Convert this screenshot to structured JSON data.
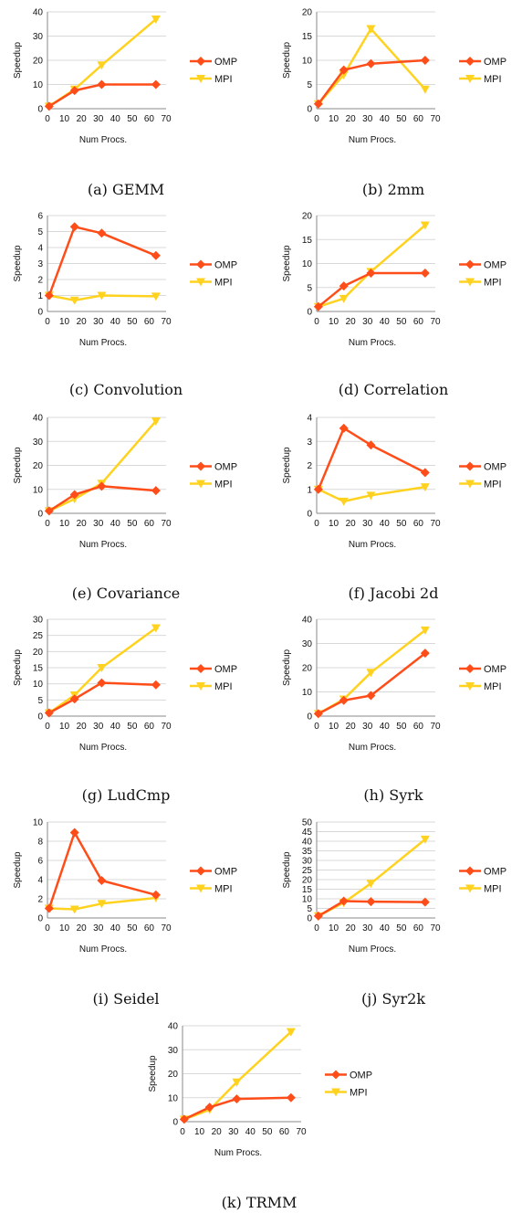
{
  "legend": {
    "omp": "OMP",
    "mpi": "MPI"
  },
  "colors": {
    "omp": "#ff4d1a",
    "mpi": "#ffd21f",
    "grid": "#d9d9d9",
    "axis": "#8a8a8a"
  },
  "chart_data": [
    {
      "type": "line",
      "caption": "(a) GEMM",
      "xlabel": "Num Procs.",
      "ylabel": "Speedup",
      "xlim": [
        0,
        70
      ],
      "ylim": [
        0,
        40
      ],
      "xticks": [
        "0",
        "10",
        "20",
        "30",
        "40",
        "50",
        "60",
        "70"
      ],
      "yticks": [
        "0",
        "10",
        "20",
        "30",
        "40"
      ],
      "grid": true,
      "legend_position": "right",
      "series": [
        {
          "name": "OMP",
          "x": [
            1,
            16,
            32,
            64
          ],
          "y": [
            1,
            7.5,
            10,
            10
          ]
        },
        {
          "name": "MPI",
          "x": [
            1,
            16,
            32,
            64
          ],
          "y": [
            1,
            8,
            18,
            37
          ]
        }
      ]
    },
    {
      "type": "line",
      "caption": "(b) 2mm",
      "xlabel": "Num Procs.",
      "ylabel": "Speedup",
      "xlim": [
        0,
        70
      ],
      "ylim": [
        0,
        20
      ],
      "xticks": [
        "0",
        "10",
        "20",
        "30",
        "40",
        "50",
        "60",
        "70"
      ],
      "yticks": [
        "0",
        "5",
        "10",
        "15",
        "20"
      ],
      "grid": true,
      "legend_position": "right",
      "series": [
        {
          "name": "OMP",
          "x": [
            1,
            16,
            32,
            64
          ],
          "y": [
            1,
            8,
            9.3,
            10
          ]
        },
        {
          "name": "MPI",
          "x": [
            1,
            16,
            32,
            64
          ],
          "y": [
            1,
            7,
            16.5,
            4
          ]
        }
      ]
    },
    {
      "type": "line",
      "caption": "(c) Convolution",
      "xlabel": "Num Procs.",
      "ylabel": "Speedup",
      "xlim": [
        0,
        70
      ],
      "ylim": [
        0,
        6
      ],
      "xticks": [
        "0",
        "10",
        "20",
        "30",
        "40",
        "50",
        "60",
        "70"
      ],
      "yticks": [
        "0",
        "1",
        "2",
        "3",
        "4",
        "5",
        "6"
      ],
      "grid": true,
      "legend_position": "right",
      "series": [
        {
          "name": "OMP",
          "x": [
            1,
            16,
            32,
            64
          ],
          "y": [
            1,
            5.3,
            4.9,
            3.5
          ]
        },
        {
          "name": "MPI",
          "x": [
            1,
            16,
            32,
            64
          ],
          "y": [
            1,
            0.7,
            1,
            0.95
          ]
        }
      ]
    },
    {
      "type": "line",
      "caption": "(d) Correlation",
      "xlabel": "Num Procs.",
      "ylabel": "Speedup",
      "xlim": [
        0,
        70
      ],
      "ylim": [
        0,
        20
      ],
      "xticks": [
        "0",
        "10",
        "20",
        "30",
        "40",
        "50",
        "60",
        "70"
      ],
      "yticks": [
        "0",
        "5",
        "10",
        "15",
        "20"
      ],
      "grid": true,
      "legend_position": "right",
      "series": [
        {
          "name": "OMP",
          "x": [
            1,
            16,
            32,
            64
          ],
          "y": [
            1,
            5.3,
            8,
            8
          ]
        },
        {
          "name": "MPI",
          "x": [
            1,
            16,
            32,
            64
          ],
          "y": [
            1,
            2.7,
            8.3,
            18
          ]
        }
      ]
    },
    {
      "type": "line",
      "caption": "(e) Covariance",
      "xlabel": "Num Procs.",
      "ylabel": "Speedup",
      "xlim": [
        0,
        70
      ],
      "ylim": [
        0,
        40
      ],
      "xticks": [
        "0",
        "10",
        "20",
        "30",
        "40",
        "50",
        "60",
        "70"
      ],
      "yticks": [
        "0",
        "10",
        "20",
        "30",
        "40"
      ],
      "grid": true,
      "legend_position": "right",
      "series": [
        {
          "name": "OMP",
          "x": [
            1,
            16,
            32,
            64
          ],
          "y": [
            1,
            7.8,
            11.3,
            9.5
          ]
        },
        {
          "name": "MPI",
          "x": [
            1,
            16,
            32,
            64
          ],
          "y": [
            1,
            6,
            12.5,
            38.5
          ]
        }
      ]
    },
    {
      "type": "line",
      "caption": "(f) Jacobi 2d",
      "xlabel": "Num Procs.",
      "ylabel": "Speedup",
      "xlim": [
        0,
        70
      ],
      "ylim": [
        0,
        4
      ],
      "xticks": [
        "0",
        "10",
        "20",
        "30",
        "40",
        "50",
        "60",
        "70"
      ],
      "yticks": [
        "0",
        "1",
        "2",
        "3",
        "4"
      ],
      "grid": true,
      "legend_position": "right",
      "series": [
        {
          "name": "OMP",
          "x": [
            1,
            16,
            32,
            64
          ],
          "y": [
            1,
            3.55,
            2.85,
            1.7
          ]
        },
        {
          "name": "MPI",
          "x": [
            1,
            16,
            32,
            64
          ],
          "y": [
            1,
            0.5,
            0.75,
            1.1
          ]
        }
      ]
    },
    {
      "type": "line",
      "caption": "(g) LudCmp",
      "xlabel": "Num Procs.",
      "ylabel": "Speedup",
      "xlim": [
        0,
        70
      ],
      "ylim": [
        0,
        30
      ],
      "xticks": [
        "0",
        "10",
        "20",
        "30",
        "40",
        "50",
        "60",
        "70"
      ],
      "yticks": [
        "0",
        "5",
        "10",
        "15",
        "20",
        "25",
        "30"
      ],
      "grid": true,
      "legend_position": "right",
      "series": [
        {
          "name": "OMP",
          "x": [
            1,
            16,
            32,
            64
          ],
          "y": [
            1,
            5.3,
            10.3,
            9.7
          ]
        },
        {
          "name": "MPI",
          "x": [
            1,
            16,
            32,
            64
          ],
          "y": [
            1,
            6.5,
            15,
            27.3
          ]
        }
      ]
    },
    {
      "type": "line",
      "caption": "(h) Syrk",
      "xlabel": "Num Procs.",
      "ylabel": "Speedup",
      "xlim": [
        0,
        70
      ],
      "ylim": [
        0,
        40
      ],
      "xticks": [
        "0",
        "10",
        "20",
        "30",
        "40",
        "50",
        "60",
        "70"
      ],
      "yticks": [
        "0",
        "10",
        "20",
        "30",
        "40"
      ],
      "grid": true,
      "legend_position": "right",
      "series": [
        {
          "name": "OMP",
          "x": [
            1,
            16,
            32,
            64
          ],
          "y": [
            1,
            6.5,
            8.5,
            26
          ]
        },
        {
          "name": "MPI",
          "x": [
            1,
            16,
            32,
            64
          ],
          "y": [
            1,
            7,
            18,
            35.5
          ]
        }
      ]
    },
    {
      "type": "line",
      "caption": "(i) Seidel",
      "xlabel": "Num Procs.",
      "ylabel": "Speedup",
      "xlim": [
        0,
        70
      ],
      "ylim": [
        0,
        10
      ],
      "xticks": [
        "0",
        "10",
        "20",
        "30",
        "40",
        "50",
        "60",
        "70"
      ],
      "yticks": [
        "0",
        "2",
        "4",
        "6",
        "8",
        "10"
      ],
      "grid": true,
      "legend_position": "right",
      "series": [
        {
          "name": "OMP",
          "x": [
            1,
            16,
            32,
            64
          ],
          "y": [
            1,
            8.9,
            3.9,
            2.4
          ]
        },
        {
          "name": "MPI",
          "x": [
            1,
            16,
            32,
            64
          ],
          "y": [
            1,
            0.9,
            1.5,
            2.1
          ]
        }
      ]
    },
    {
      "type": "line",
      "caption": "(j) Syr2k",
      "xlabel": "Num Procs.",
      "ylabel": "Speedup",
      "xlim": [
        0,
        70
      ],
      "ylim": [
        0,
        50
      ],
      "xticks": [
        "0",
        "10",
        "20",
        "30",
        "40",
        "50",
        "60",
        "70"
      ],
      "yticks": [
        "0",
        "5",
        "10",
        "15",
        "20",
        "25",
        "30",
        "35",
        "40",
        "45",
        "50"
      ],
      "grid": true,
      "legend_position": "right",
      "series": [
        {
          "name": "OMP",
          "x": [
            1,
            16,
            32,
            64
          ],
          "y": [
            1,
            8.8,
            8.5,
            8.3
          ]
        },
        {
          "name": "MPI",
          "x": [
            1,
            16,
            32,
            64
          ],
          "y": [
            1,
            8,
            18,
            41
          ]
        }
      ]
    },
    {
      "type": "line",
      "caption": "(k) TRMM",
      "xlabel": "Num Procs.",
      "ylabel": "Speedup",
      "xlim": [
        0,
        70
      ],
      "ylim": [
        0,
        40
      ],
      "xticks": [
        "0",
        "10",
        "20",
        "30",
        "40",
        "50",
        "60",
        "70"
      ],
      "yticks": [
        "0",
        "10",
        "20",
        "30",
        "40"
      ],
      "grid": true,
      "legend_position": "right",
      "series": [
        {
          "name": "OMP",
          "x": [
            1,
            16,
            32,
            64
          ],
          "y": [
            1,
            6,
            9.5,
            10
          ]
        },
        {
          "name": "MPI",
          "x": [
            1,
            16,
            32,
            64
          ],
          "y": [
            1,
            5,
            16.5,
            37.5
          ]
        }
      ]
    }
  ]
}
